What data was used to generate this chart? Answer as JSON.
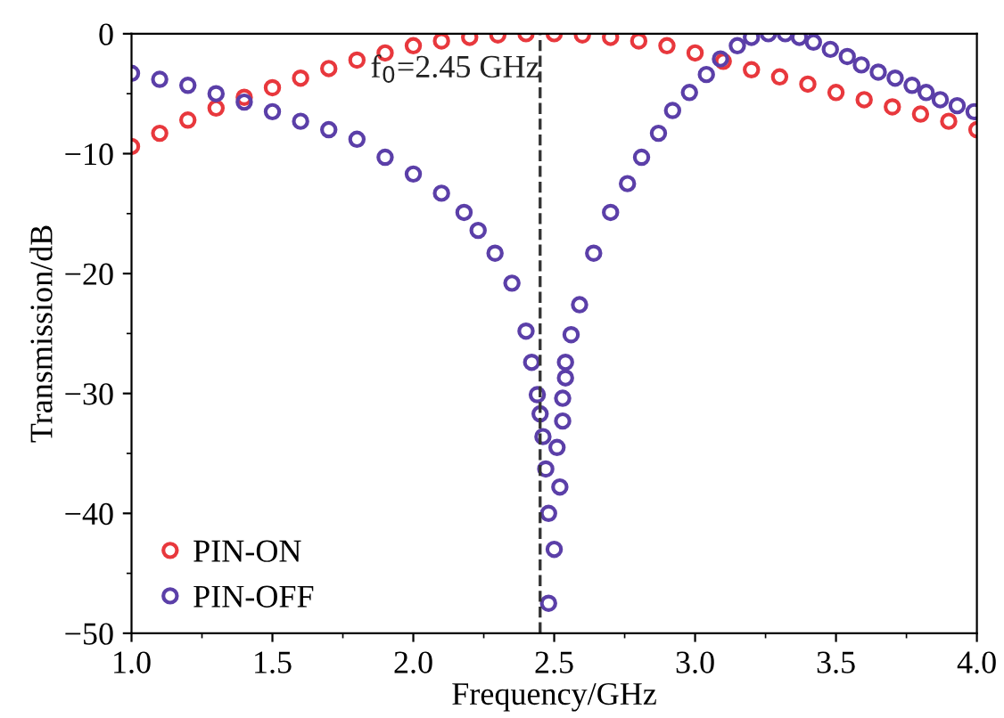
{
  "chart_data": {
    "type": "scatter",
    "xlabel": "Frequency/GHz",
    "ylabel": "Transmission/dB",
    "xlim": [
      1.0,
      4.0
    ],
    "ylim": [
      -50,
      0
    ],
    "xticks": [
      {
        "value": 1.0,
        "label": "1.0"
      },
      {
        "value": 1.5,
        "label": "1.5"
      },
      {
        "value": 2.0,
        "label": "2.0"
      },
      {
        "value": 2.5,
        "label": "2.5"
      },
      {
        "value": 3.0,
        "label": "3.0"
      },
      {
        "value": 3.5,
        "label": "3.5"
      },
      {
        "value": 4.0,
        "label": "4.0"
      }
    ],
    "yticks": [
      {
        "value": -50,
        "label": "−50"
      },
      {
        "value": -40,
        "label": "−40"
      },
      {
        "value": -30,
        "label": "−30"
      },
      {
        "value": -20,
        "label": "−20"
      },
      {
        "value": -10,
        "label": "−10"
      },
      0
    ],
    "marker": "circle",
    "legend": "bottom left",
    "grid": false,
    "ref_lines": [
      {
        "axis": "x",
        "value": 2.45,
        "label": "f$_{0}$=2.45 GHz",
        "color": "#333333",
        "line_style": "dashed"
      }
    ],
    "series": [
      {
        "name": "PIN-ON",
        "color": "#e8383d",
        "x": [
          1.0,
          1.1,
          1.2,
          1.3,
          1.4,
          1.5,
          1.6,
          1.7,
          1.8,
          1.9,
          2.0,
          2.1,
          2.2,
          2.3,
          2.4,
          2.5,
          2.6,
          2.7,
          2.8,
          2.9,
          3.0,
          3.1,
          3.2,
          3.3,
          3.4,
          3.5,
          3.6,
          3.7,
          3.8,
          3.9,
          4.0
        ],
        "values": [
          -9.4,
          -8.3,
          -7.2,
          -6.2,
          -5.3,
          -4.5,
          -3.7,
          -2.9,
          -2.2,
          -1.6,
          -1.0,
          -0.6,
          -0.3,
          -0.1,
          0,
          0,
          -0.1,
          -0.3,
          -0.6,
          -1.0,
          -1.6,
          -2.3,
          -3.0,
          -3.6,
          -4.2,
          -4.9,
          -5.5,
          -6.1,
          -6.7,
          -7.3,
          -8.0
        ]
      },
      {
        "name": "PIN-OFF",
        "color": "#5b3fa8",
        "x": [
          1.0,
          1.1,
          1.2,
          1.3,
          1.4,
          1.5,
          1.6,
          1.7,
          1.8,
          1.9,
          2.0,
          2.1,
          2.18,
          2.23,
          2.29,
          2.35,
          2.4,
          2.42,
          2.44,
          2.45,
          2.46,
          2.47,
          2.48,
          2.48,
          2.5,
          2.51,
          2.52,
          2.53,
          2.53,
          2.54,
          2.54,
          2.56,
          2.59,
          2.64,
          2.7,
          2.76,
          2.81,
          2.87,
          2.92,
          2.98,
          3.04,
          3.09,
          3.15,
          3.2,
          3.26,
          3.32,
          3.37,
          3.42,
          3.48,
          3.54,
          3.59,
          3.65,
          3.71,
          3.77,
          3.82,
          3.87,
          3.93,
          3.99
        ],
        "values": [
          -3.3,
          -3.8,
          -4.3,
          -5.0,
          -5.7,
          -6.5,
          -7.3,
          -8.0,
          -8.8,
          -10.3,
          -11.7,
          -13.3,
          -14.9,
          -16.4,
          -18.3,
          -20.8,
          -24.8,
          -27.4,
          -30.1,
          -31.7,
          -33.6,
          -36.3,
          -40.0,
          -47.5,
          -43.0,
          -34.5,
          -37.8,
          -32.3,
          -30.4,
          -28.7,
          -27.4,
          -25.1,
          -22.6,
          -18.3,
          -14.9,
          -12.5,
          -10.3,
          -8.3,
          -6.4,
          -4.9,
          -3.4,
          -2.1,
          -1.0,
          -0.3,
          0,
          0,
          -0.3,
          -0.7,
          -1.3,
          -1.9,
          -2.6,
          -3.2,
          -3.7,
          -4.3,
          -4.9,
          -5.5,
          -6.0,
          -6.5
        ]
      }
    ]
  }
}
